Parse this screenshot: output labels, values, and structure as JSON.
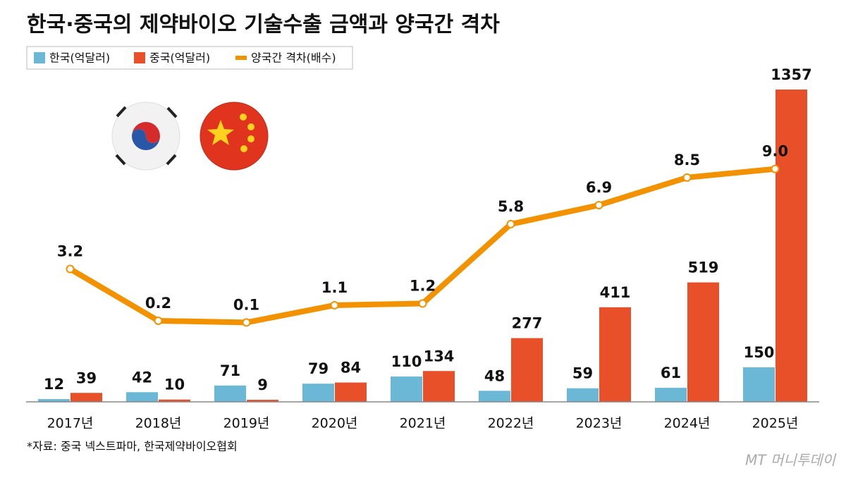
{
  "chart_data": {
    "type": "bar",
    "title": "한국·중국의 제약바이오 기술수출 금액과 양국간 격차",
    "categories": [
      "2017년",
      "2018년",
      "2019년",
      "2020년",
      "2021년",
      "2022년",
      "2023년",
      "2024년",
      "2025년"
    ],
    "series": [
      {
        "name": "한국(억달러)",
        "color": "#6ab7d6",
        "values": [
          12,
          42,
          71,
          79,
          110,
          48,
          59,
          61,
          150
        ]
      },
      {
        "name": "중국(억달러)",
        "color": "#e8502a",
        "values": [
          39,
          10,
          9,
          84,
          134,
          277,
          411,
          519,
          1357
        ]
      },
      {
        "name": "양국간 격차(배수)",
        "color": "#f39200",
        "type": "line",
        "axis": "y2",
        "values": [
          3.2,
          0.2,
          0.1,
          1.1,
          1.2,
          5.8,
          6.9,
          8.5,
          9.0
        ],
        "value_labels": [
          "3.2",
          "0.2",
          "0.1",
          "1.1",
          "1.2",
          "5.8",
          "6.9",
          "8.5",
          "9.0"
        ]
      }
    ],
    "ylim": [
      0,
      1357
    ],
    "y2lim": [
      -4.5,
      13.6
    ],
    "source": "*자료: 중국 넥스트파마, 한국제약바이오협회",
    "watermark": "MT 머니투데이"
  }
}
